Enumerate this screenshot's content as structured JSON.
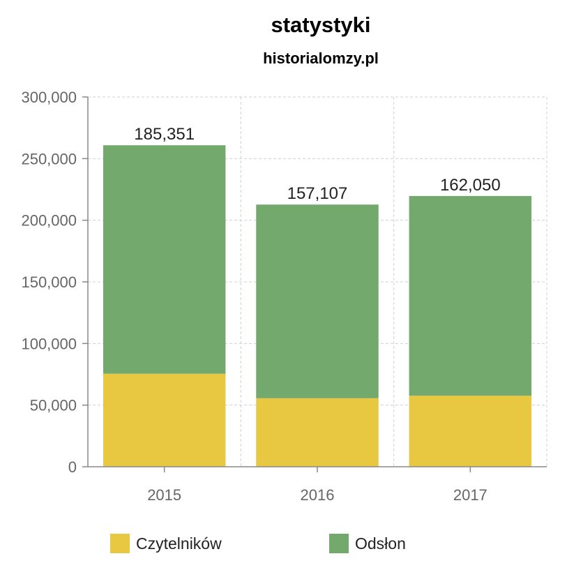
{
  "chart_data": {
    "type": "bar",
    "stacked": true,
    "title": "statystyki",
    "subtitle": "historialomzy.pl",
    "categories": [
      "2015",
      "2016",
      "2017"
    ],
    "series": [
      {
        "name": "Czytelników",
        "color": "#e8c840",
        "values": [
          75479,
          55600,
          57615
        ],
        "labels": [
          "75,479",
          "55,600",
          "57,615"
        ]
      },
      {
        "name": "Odsłon",
        "color": "#73a96c",
        "values": [
          185351,
          157107,
          162050
        ],
        "labels": [
          "185,351",
          "157,107",
          "162,050"
        ]
      }
    ],
    "ylim": [
      0,
      300000
    ],
    "yticks": [
      0,
      50000,
      100000,
      150000,
      200000,
      250000,
      300000
    ],
    "ytick_labels": [
      "0",
      "50,000",
      "100,000",
      "150,000",
      "200,000",
      "250,000",
      "300,000"
    ],
    "grid": true,
    "legend": "bottom"
  }
}
